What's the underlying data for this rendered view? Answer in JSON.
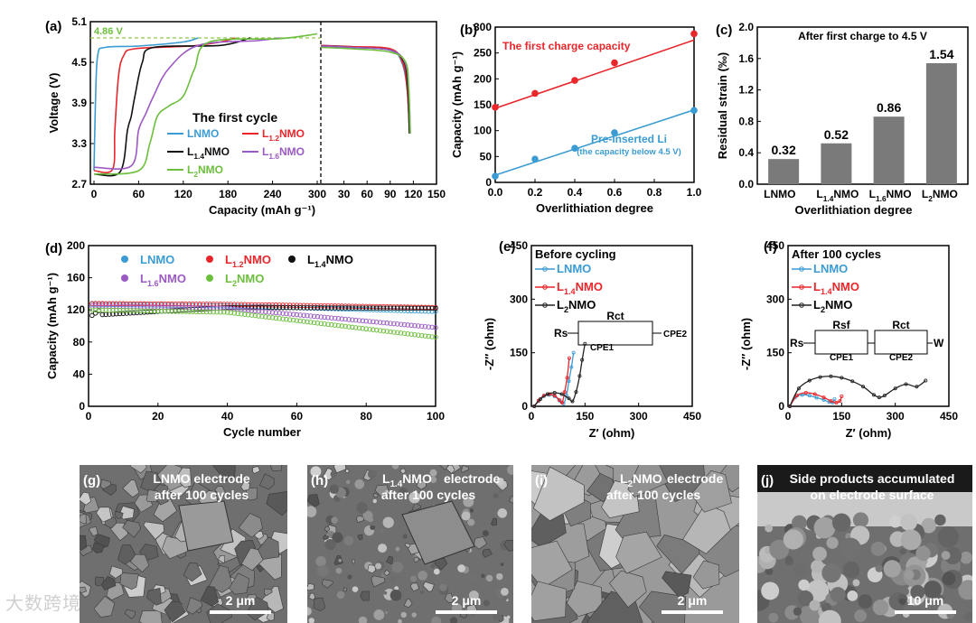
{
  "chart_data": [
    {
      "panel": "(a)",
      "type": "line",
      "ylabel": "Voltage (V)",
      "xlabel": "Capacity (mAh g⁻¹)",
      "ylim": [
        2.7,
        5.1
      ],
      "yticks": [
        "2.7",
        "3.3",
        "3.9",
        "4.5",
        "5.1"
      ],
      "xticks_charge": [
        "0",
        "60",
        "120",
        "180",
        "240",
        "300"
      ],
      "xticks_discharge": [
        "30",
        "60",
        "90",
        "120",
        "150"
      ],
      "annotation": "4.86 V",
      "legend_title": "The first cycle",
      "legend": [
        "LNMO",
        "L1.2NMO",
        "L1.4NMO",
        "L1.6NMO",
        "L2NMO"
      ],
      "colors": [
        "#3b9cd3",
        "#e8262b",
        "#111111",
        "#9b59c4",
        "#6cbf3c"
      ],
      "series": [
        {
          "name": "LNMO",
          "charge": [
            [
              0,
              2.9
            ],
            [
              2,
              3.9
            ],
            [
              5,
              4.6
            ],
            [
              15,
              4.72
            ],
            [
              60,
              4.74
            ],
            [
              120,
              4.8
            ],
            [
              140,
              4.86
            ]
          ],
          "discharge": [
            [
              0,
              4.75
            ],
            [
              40,
              4.73
            ],
            [
              90,
              4.68
            ],
            [
              105,
              4.5
            ],
            [
              112,
              4.1
            ],
            [
              115,
              3.45
            ]
          ]
        },
        {
          "name": "L1.2NMO",
          "charge": [
            [
              0,
              2.9
            ],
            [
              25,
              2.92
            ],
            [
              28,
              3.5
            ],
            [
              33,
              4.3
            ],
            [
              40,
              4.6
            ],
            [
              55,
              4.7
            ],
            [
              130,
              4.74
            ],
            [
              170,
              4.8
            ],
            [
              190,
              4.86
            ]
          ],
          "discharge": [
            [
              0,
              4.75
            ],
            [
              40,
              4.73
            ],
            [
              90,
              4.7
            ],
            [
              106,
              4.5
            ],
            [
              112,
              4.1
            ],
            [
              115,
              3.45
            ]
          ]
        },
        {
          "name": "L1.4NMO",
          "charge": [
            [
              0,
              2.85
            ],
            [
              35,
              2.88
            ],
            [
              45,
              3.5
            ],
            [
              50,
              3.7
            ],
            [
              55,
              4.0
            ],
            [
              65,
              4.5
            ],
            [
              80,
              4.72
            ],
            [
              170,
              4.75
            ],
            [
              210,
              4.86
            ]
          ],
          "discharge": [
            [
              0,
              4.74
            ],
            [
              40,
              4.72
            ],
            [
              90,
              4.68
            ],
            [
              108,
              4.5
            ],
            [
              113,
              4.1
            ],
            [
              115,
              3.45
            ]
          ]
        },
        {
          "name": "L1.6NMO",
          "charge": [
            [
              0,
              2.95
            ],
            [
              50,
              2.97
            ],
            [
              60,
              3.5
            ],
            [
              70,
              3.75
            ],
            [
              80,
              4.0
            ],
            [
              100,
              4.4
            ],
            [
              140,
              4.75
            ],
            [
              220,
              4.82
            ],
            [
              250,
              4.86
            ]
          ],
          "discharge": [
            [
              0,
              4.74
            ],
            [
              40,
              4.72
            ],
            [
              90,
              4.68
            ],
            [
              109,
              4.5
            ],
            [
              114,
              4.1
            ],
            [
              116,
              3.45
            ]
          ]
        },
        {
          "name": "L2NMO",
          "charge": [
            [
              0,
              2.85
            ],
            [
              60,
              2.9
            ],
            [
              75,
              3.3
            ],
            [
              85,
              3.7
            ],
            [
              100,
              3.85
            ],
            [
              120,
              4.0
            ],
            [
              135,
              4.4
            ],
            [
              155,
              4.8
            ],
            [
              250,
              4.85
            ],
            [
              300,
              4.92
            ]
          ],
          "discharge": [
            [
              0,
              4.72
            ],
            [
              40,
              4.7
            ],
            [
              90,
              4.65
            ],
            [
              110,
              4.5
            ],
            [
              114,
              4.1
            ],
            [
              116,
              3.45
            ]
          ]
        }
      ]
    },
    {
      "panel": "(b)",
      "type": "scatter",
      "xlabel": "Overlithiation degree",
      "ylabel": "Capacity (mAh g⁻¹)",
      "xlim": [
        0,
        1.0
      ],
      "ylim": [
        0,
        300
      ],
      "xticks": [
        "0.0",
        "0.2",
        "0.4",
        "0.6",
        "0.8",
        "1.0"
      ],
      "yticks": [
        "0",
        "50",
        "100",
        "150",
        "200",
        "250",
        "300"
      ],
      "series": [
        {
          "name": "The first charge capacity",
          "color": "#e8262b",
          "x": [
            0.0,
            0.2,
            0.4,
            0.6,
            1.0
          ],
          "y": [
            145,
            172,
            197,
            231,
            287
          ],
          "fit": [
            [
              0.0,
              143
            ],
            [
              1.0,
              275
            ]
          ]
        },
        {
          "name": "Pre-inserted Li",
          "note": "(the capacity below 4.5 V)",
          "color": "#3b9cd3",
          "x": [
            0.0,
            0.2,
            0.4,
            0.6,
            1.0
          ],
          "y": [
            12,
            45,
            66,
            96,
            139
          ],
          "fit": [
            [
              0.0,
              14
            ],
            [
              1.0,
              140
            ]
          ]
        }
      ]
    },
    {
      "panel": "(c)",
      "type": "bar",
      "title": "After first charge to 4.5 V",
      "xlabel": "Overlithiation degree",
      "ylabel": "Residual strain (‰)",
      "ylim": [
        0.0,
        2.0
      ],
      "yticks": [
        "0.0",
        "0.4",
        "0.8",
        "1.2",
        "1.6",
        "2.0"
      ],
      "categories": [
        "LNMO",
        "L1.4NMO",
        "L1.6NMO",
        "L2NMO"
      ],
      "values": [
        0.32,
        0.52,
        0.86,
        1.54
      ],
      "labels": [
        "0.32",
        "0.52",
        "0.86",
        "1.54"
      ],
      "bar_color": "#7a7a7a"
    },
    {
      "panel": "(d)",
      "type": "scatter",
      "xlabel": "Cycle number",
      "ylabel": "Capacity (mAh g⁻¹)",
      "xlim": [
        0,
        100
      ],
      "ylim": [
        0,
        200
      ],
      "xticks": [
        "0",
        "20",
        "40",
        "60",
        "80",
        "100"
      ],
      "yticks": [
        "0",
        "40",
        "80",
        "120",
        "160",
        "200"
      ],
      "series": [
        {
          "name": "LNMO",
          "color": "#3b9cd3",
          "start": 127,
          "mid": 125,
          "end": 118
        },
        {
          "name": "L1.2NMO",
          "color": "#e8262b",
          "start": 128,
          "mid": 127,
          "end": 123
        },
        {
          "name": "L1.4NMO",
          "color": "#111111",
          "start": 113,
          "mid": 123,
          "end": 122
        },
        {
          "name": "L1.6NMO",
          "color": "#9b59c4",
          "start": 125,
          "mid": 122,
          "end": 98
        },
        {
          "name": "L2NMO",
          "color": "#6cbf3c",
          "start": 120,
          "mid": 117,
          "end": 86
        }
      ]
    },
    {
      "panel": "(e)",
      "type": "line",
      "title": "Before cycling",
      "xlabel": "Z′ (ohm)",
      "ylabel": "-Z″ (ohm)",
      "xlim": [
        0,
        450
      ],
      "ylim": [
        0,
        450
      ],
      "xticks": [
        "0",
        "150",
        "300",
        "450"
      ],
      "yticks": [
        "0",
        "150",
        "300",
        "450"
      ],
      "legend": [
        "LNMO",
        "L1.4NMO",
        "L2NMO"
      ],
      "circuit": [
        "Rs",
        "Rct",
        "CPE1",
        "CPE2"
      ],
      "series": [
        {
          "name": "LNMO",
          "color": "#3b9cd3",
          "x": [
            8,
            20,
            35,
            50,
            65,
            80,
            90,
            98,
            105,
            112,
            118
          ],
          "y": [
            0,
            15,
            28,
            32,
            28,
            15,
            8,
            30,
            70,
            110,
            150
          ]
        },
        {
          "name": "L1.4NMO",
          "color": "#e8262b",
          "x": [
            8,
            20,
            35,
            50,
            65,
            78,
            86,
            93,
            100,
            106
          ],
          "y": [
            0,
            16,
            30,
            34,
            30,
            18,
            10,
            40,
            80,
            135
          ]
        },
        {
          "name": "L2NMO",
          "color": "#222222",
          "x": [
            8,
            25,
            45,
            65,
            85,
            105,
            115,
            125,
            135,
            142,
            150
          ],
          "y": [
            0,
            20,
            34,
            38,
            34,
            22,
            14,
            40,
            85,
            130,
            175
          ]
        }
      ]
    },
    {
      "panel": "(f)",
      "type": "line",
      "title": "After 100 cycles",
      "xlabel": "Z′ (ohm)",
      "ylabel": "-Z″ (ohm)",
      "xlim": [
        0,
        450
      ],
      "ylim": [
        0,
        450
      ],
      "xticks": [
        "0",
        "150",
        "300",
        "450"
      ],
      "yticks": [
        "0",
        "150",
        "300",
        "450"
      ],
      "legend": [
        "LNMO",
        "L1.4NMO",
        "L2NMO"
      ],
      "circuit": [
        "Rs",
        "Rsf",
        "CPE1",
        "Rct",
        "CPE2",
        "W"
      ],
      "series": [
        {
          "name": "LNMO",
          "color": "#3b9cd3",
          "x": [
            5,
            20,
            40,
            60,
            80,
            100,
            115,
            125,
            130
          ],
          "y": [
            0,
            25,
            32,
            30,
            24,
            18,
            12,
            10,
            20
          ]
        },
        {
          "name": "L1.4NMO",
          "color": "#e8262b",
          "x": [
            5,
            25,
            50,
            75,
            100,
            120,
            135,
            145,
            150
          ],
          "y": [
            0,
            30,
            38,
            34,
            25,
            15,
            10,
            15,
            28
          ]
        },
        {
          "name": "L2NMO",
          "color": "#222222",
          "x": [
            5,
            30,
            60,
            90,
            120,
            150,
            180,
            210,
            240,
            255,
            270,
            300,
            330,
            360,
            385
          ],
          "y": [
            0,
            50,
            72,
            82,
            84,
            80,
            70,
            55,
            32,
            25,
            30,
            50,
            62,
            55,
            72
          ]
        }
      ]
    }
  ],
  "micrographs": [
    {
      "panel": "(g)",
      "caption": "LNMO electrode after 100 cycles",
      "scale": "2 μm"
    },
    {
      "panel": "(h)",
      "caption": "L1.4NMO electrode after 100 cycles",
      "scale": "2 μm"
    },
    {
      "panel": "(i)",
      "caption": "L2NMO electrode after 100 cycles",
      "scale": "2 μm"
    },
    {
      "panel": "(j)",
      "caption": "Side products accumulated on electrode surface",
      "scale": "10 μm"
    }
  ],
  "watermark": "大数跨境"
}
